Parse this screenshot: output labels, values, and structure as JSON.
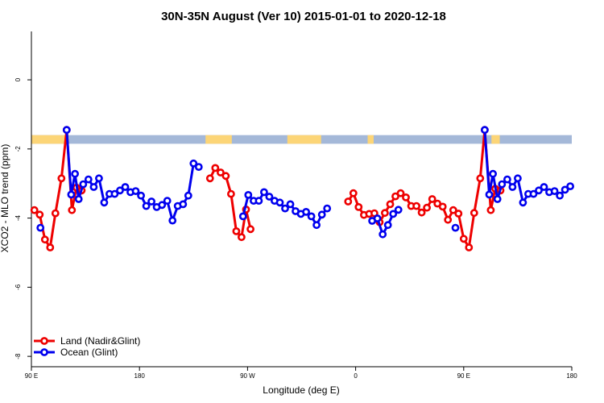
{
  "chart_data": {
    "type": "line",
    "title": "30N-35N August (Ver 10)   2015-01-01 to 2020-12-18",
    "xlabel": "Longitude (deg E)",
    "ylabel": "XCO2 - MLO trend (ppm)",
    "xlim": [
      90,
      450
    ],
    "ylim": [
      -8.3,
      1.4
    ],
    "x_ticks": [
      {
        "value": 90,
        "label": "90 E"
      },
      {
        "value": 162,
        "label": "180"
      },
      {
        "value": 234,
        "label": "90 W"
      },
      {
        "value": 306,
        "label": "0"
      },
      {
        "value": 378,
        "label": "90 E"
      },
      {
        "value": 450,
        "label": "180"
      }
    ],
    "y_ticks": [
      {
        "value": 0,
        "label": "0"
      },
      {
        "value": -2,
        "label": "-2"
      },
      {
        "value": -4,
        "label": "-4"
      },
      {
        "value": -6,
        "label": "-6"
      },
      {
        "value": -8,
        "label": "-8"
      }
    ],
    "land_ocean_mask": {
      "ymin": -1.85,
      "ymax": -1.6,
      "land_color": "#fcd577",
      "ocean_color": "#a4b8d8",
      "land_segments": [
        [
          90,
          114.5
        ],
        [
          206,
          223.5
        ],
        [
          260.5,
          283
        ],
        [
          314,
          318
        ],
        [
          396.5,
          402
        ]
      ]
    },
    "series": [
      {
        "name": "Land (Nadir&Glint)",
        "color": "#ee0000",
        "points": [
          [
            92,
            -3.77
          ],
          [
            95.5,
            -3.9
          ],
          [
            99,
            -4.62
          ],
          [
            102.5,
            -4.85
          ],
          [
            106,
            -3.86
          ],
          [
            110,
            -2.85
          ],
          [
            113.5,
            -1.45
          ],
          [
            117,
            -3.77
          ],
          [
            120,
            -3.12
          ],
          [
            123.5,
            -3.2
          ],
          null,
          [
            209,
            -2.85
          ],
          [
            212.5,
            -2.55
          ],
          [
            216,
            -2.68
          ],
          [
            219.5,
            -2.78
          ],
          [
            223,
            -3.3
          ],
          [
            226.5,
            -4.38
          ],
          [
            230,
            -4.55
          ],
          [
            233,
            -3.75
          ],
          [
            236,
            -4.32
          ],
          null,
          [
            301,
            -3.52
          ],
          [
            304.5,
            -3.28
          ],
          [
            308,
            -3.68
          ],
          [
            311.5,
            -3.91
          ],
          [
            315,
            -3.88
          ],
          [
            318.5,
            -3.86
          ],
          [
            322,
            -4.12
          ],
          [
            325.5,
            -3.85
          ],
          [
            329,
            -3.6
          ],
          [
            332.5,
            -3.37
          ],
          [
            336,
            -3.28
          ],
          [
            339.5,
            -3.4
          ],
          [
            343,
            -3.65
          ],
          [
            346.5,
            -3.65
          ],
          [
            350,
            -3.84
          ],
          [
            353.5,
            -3.7
          ],
          [
            357,
            -3.45
          ],
          [
            360.5,
            -3.58
          ],
          [
            364,
            -3.67
          ],
          [
            367.5,
            -4.05
          ],
          [
            371,
            -3.77
          ],
          [
            374.5,
            -3.87
          ],
          [
            378,
            -4.6
          ],
          [
            381.5,
            -4.85
          ],
          [
            385,
            -3.85
          ],
          [
            389,
            -2.85
          ],
          [
            392,
            -1.45
          ],
          [
            396,
            -3.77
          ],
          [
            399,
            -3.15
          ],
          [
            402.5,
            -3.2
          ]
        ]
      },
      {
        "name": "Ocean (Glint)",
        "color": "#0000ee",
        "points": [
          [
            96,
            -4.28
          ],
          null,
          [
            113.5,
            -1.45
          ],
          [
            116.5,
            -3.32
          ],
          [
            119,
            -2.72
          ],
          [
            121.5,
            -3.45
          ],
          [
            124.5,
            -3.02
          ],
          [
            128,
            -2.88
          ],
          [
            131.5,
            -3.1
          ],
          [
            135,
            -2.85
          ],
          [
            138.5,
            -3.55
          ],
          [
            142,
            -3.3
          ],
          [
            145.5,
            -3.3
          ],
          [
            149,
            -3.2
          ],
          [
            152.5,
            -3.1
          ],
          [
            156,
            -3.25
          ],
          [
            159.5,
            -3.22
          ],
          [
            163,
            -3.35
          ],
          [
            166.5,
            -3.65
          ],
          [
            170,
            -3.52
          ],
          [
            173.5,
            -3.68
          ],
          [
            177,
            -3.62
          ],
          [
            180.5,
            -3.5
          ],
          [
            184,
            -4.07
          ],
          [
            187.5,
            -3.65
          ],
          [
            191,
            -3.6
          ],
          [
            194.5,
            -3.35
          ],
          [
            198,
            -2.42
          ],
          [
            201.5,
            -2.52
          ],
          null,
          [
            231,
            -3.95
          ],
          [
            234.5,
            -3.33
          ],
          [
            238,
            -3.5
          ],
          [
            241.5,
            -3.5
          ],
          [
            245,
            -3.25
          ],
          [
            248.5,
            -3.38
          ],
          [
            252,
            -3.5
          ],
          [
            255.5,
            -3.55
          ],
          [
            259,
            -3.72
          ],
          [
            262.5,
            -3.6
          ],
          [
            266,
            -3.8
          ],
          [
            269.5,
            -3.88
          ],
          [
            273,
            -3.82
          ],
          [
            276.5,
            -3.95
          ],
          [
            280,
            -4.2
          ],
          [
            283.5,
            -3.9
          ],
          [
            287,
            -3.72
          ],
          null,
          [
            317,
            -4.08
          ],
          [
            320.5,
            -4.01
          ],
          [
            324,
            -4.47
          ],
          [
            327.5,
            -4.2
          ],
          [
            331,
            -3.88
          ],
          [
            334.5,
            -3.76
          ],
          null,
          [
            372.5,
            -4.28
          ],
          null,
          [
            392,
            -1.45
          ],
          [
            395,
            -3.32
          ],
          [
            397.5,
            -2.72
          ],
          [
            400.5,
            -3.45
          ],
          [
            403.5,
            -3.02
          ],
          [
            407,
            -2.88
          ],
          [
            410.5,
            -3.1
          ],
          [
            414,
            -2.85
          ],
          [
            417.5,
            -3.55
          ],
          [
            421,
            -3.3
          ],
          [
            424.5,
            -3.3
          ],
          [
            428,
            -3.2
          ],
          [
            431.5,
            -3.1
          ],
          [
            435,
            -3.25
          ],
          [
            438.5,
            -3.22
          ],
          [
            442,
            -3.35
          ],
          [
            445.5,
            -3.18
          ],
          [
            449,
            -3.08
          ]
        ]
      }
    ],
    "legend": {
      "position": "bottom-left",
      "entries": [
        "Land (Nadir&Glint)",
        "Ocean (Glint)"
      ]
    }
  }
}
